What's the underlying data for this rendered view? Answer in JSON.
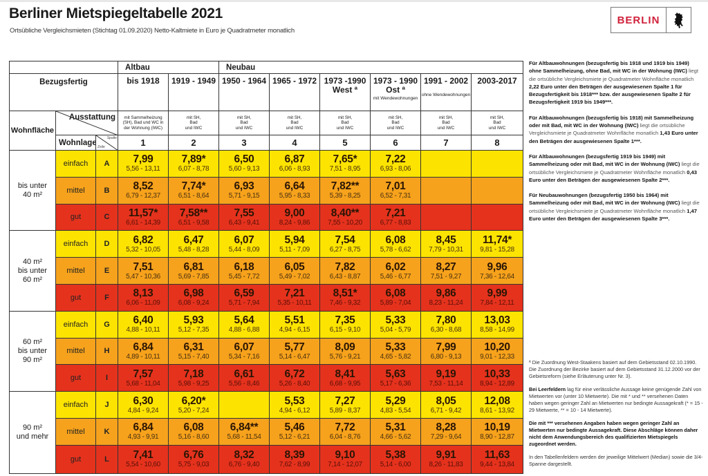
{
  "title": "Berliner Mietspiegeltabelle 2021",
  "subtitle": "Ortsübliche Vergleichsmieten (Stichtag 01.09.2020) Netto-Kaltmiete in Euro je Quadratmeter monatlich",
  "logo": {
    "text": "BERLIN",
    "icon": "berlin-bear-icon",
    "color": "#d0203a"
  },
  "colors": {
    "einfach": "#fde400",
    "mittel": "#f6a21c",
    "gut": "#e5321d"
  },
  "header": {
    "altbau": "Altbau",
    "neubau": "Neubau",
    "bezugsfertig": "Bezugsfertig",
    "wohnflaeche": "Wohnfläche",
    "ausstattung": "Ausstattung",
    "wohnlage": "Wohnlage",
    "spalte": "Spalte",
    "zeile": "Zeile",
    "columns": [
      {
        "year": "bis 1918",
        "sub": "",
        "equip": [
          "mit Sammelheizung",
          "(SH), Bad und WC in",
          "der Wohnung (IWC)"
        ],
        "num": "1"
      },
      {
        "year": "1919 - 1949",
        "sub": "",
        "equip": [
          "mit SH,",
          "Bad",
          "und IWC"
        ],
        "num": "2"
      },
      {
        "year": "1950 - 1964",
        "sub": "",
        "equip": [
          "mit SH,",
          "Bad",
          "und IWC"
        ],
        "num": "3"
      },
      {
        "year": "1965 - 1972",
        "sub": "",
        "equip": [
          "mit SH,",
          "Bad",
          "und IWC"
        ],
        "num": "4"
      },
      {
        "year": "1973 -1990",
        "year2": "West ª",
        "sub": "",
        "equip": [
          "mit SH,",
          "Bad",
          "und IWC"
        ],
        "num": "5"
      },
      {
        "year": "1973 - 1990",
        "year2": "Ost ª",
        "sub": "mit Wendewohnungen",
        "equip": [
          "mit SH,",
          "Bad",
          "und IWC"
        ],
        "num": "6"
      },
      {
        "year": "1991 - 2002",
        "sub": "ohne Wendewohnungen",
        "equip": [
          "mit SH,",
          "Bad",
          "und IWC"
        ],
        "num": "7"
      },
      {
        "year": "2003-2017",
        "sub": "",
        "equip": [
          "mit SH,",
          "Bad",
          "und IWC"
        ],
        "num": "8"
      }
    ]
  },
  "groups": [
    {
      "label": [
        "bis unter",
        "40 m²"
      ],
      "rows": [
        {
          "lage": "einfach",
          "zeile": "A",
          "cells": [
            [
              "7,99",
              "5,56 - 13,11"
            ],
            [
              "7,89*",
              "6,07 - 8,78"
            ],
            [
              "6,50",
              "5,60 - 9,13"
            ],
            [
              "6,87",
              "6,06 - 8,93"
            ],
            [
              "7,65*",
              "7,51 - 8,95"
            ],
            [
              "7,22",
              "6,93 - 8,06"
            ],
            null,
            null
          ]
        },
        {
          "lage": "mittel",
          "zeile": "B",
          "cells": [
            [
              "8,52",
              "6,79 - 12,37"
            ],
            [
              "7,74*",
              "6,51 - 8,64"
            ],
            [
              "6,93",
              "5,71 - 9,15"
            ],
            [
              "6,64",
              "5,95 - 8,33"
            ],
            [
              "7,82**",
              "5,39 - 8,25"
            ],
            [
              "7,01",
              "6,52 - 7,31"
            ],
            null,
            null
          ]
        },
        {
          "lage": "gut",
          "zeile": "C",
          "cells": [
            [
              "11,57*",
              "6,61 - 14,39"
            ],
            [
              "7,58**",
              "6,51 - 9,58"
            ],
            [
              "7,55",
              "6,43 - 9,41"
            ],
            [
              "9,00",
              "8,24 - 9,86"
            ],
            [
              "8,40**",
              "7,55 - 10,20"
            ],
            [
              "7,21",
              "6,77 - 8,83"
            ],
            null,
            null
          ]
        }
      ]
    },
    {
      "label": [
        "40 m²",
        "bis unter",
        "60 m²"
      ],
      "rows": [
        {
          "lage": "einfach",
          "zeile": "D",
          "cells": [
            [
              "6,82",
              "5,32 - 10,05"
            ],
            [
              "6,47",
              "5,48 - 8,28"
            ],
            [
              "6,07",
              "5,44 - 8,09"
            ],
            [
              "5,94",
              "5,11 - 7,09"
            ],
            [
              "7,54",
              "6,27 - 8,75"
            ],
            [
              "6,08",
              "5,78 - 6,62"
            ],
            [
              "8,45",
              "7,79 - 10,31"
            ],
            [
              "11,74*",
              "9,81 - 15,28"
            ]
          ]
        },
        {
          "lage": "mittel",
          "zeile": "E",
          "cells": [
            [
              "7,51",
              "5,47 - 10,36"
            ],
            [
              "6,81",
              "5,69 - 7,85"
            ],
            [
              "6,18",
              "5,45 - 7,72"
            ],
            [
              "6,05",
              "5,49 - 7,02"
            ],
            [
              "7,82",
              "6,43 - 8,87"
            ],
            [
              "6,02",
              "5,46 - 6,77"
            ],
            [
              "8,27",
              "7,51 - 9,27"
            ],
            [
              "9,96",
              "7,36 - 12,64"
            ]
          ]
        },
        {
          "lage": "gut",
          "zeile": "F",
          "cells": [
            [
              "8,13",
              "6,06 - 11,09"
            ],
            [
              "6,98",
              "6,08 - 9,24"
            ],
            [
              "6,59",
              "5,71 - 7,94"
            ],
            [
              "7,21",
              "5,35 - 10,11"
            ],
            [
              "8,51*",
              "7,46 - 9,32"
            ],
            [
              "6,08",
              "5,89 - 7,04"
            ],
            [
              "9,86",
              "8,23 - 11,24"
            ],
            [
              "9,99",
              "7,84 - 12,11"
            ]
          ]
        }
      ]
    },
    {
      "label": [
        "60 m²",
        "bis unter",
        "90 m²"
      ],
      "rows": [
        {
          "lage": "einfach",
          "zeile": "G",
          "cells": [
            [
              "6,40",
              "4,88 - 10,11"
            ],
            [
              "5,93",
              "5,12 - 7,35"
            ],
            [
              "5,64",
              "4,88 - 6,88"
            ],
            [
              "5,51",
              "4,94 - 6,15"
            ],
            [
              "7,35",
              "6,15 - 9,10"
            ],
            [
              "5,33",
              "5,04 - 5,79"
            ],
            [
              "7,80",
              "6,30 - 8,68"
            ],
            [
              "13,03",
              "8,58 - 14,99"
            ]
          ]
        },
        {
          "lage": "mittel",
          "zeile": "H",
          "cells": [
            [
              "6,84",
              "4,89 - 10,11"
            ],
            [
              "6,31",
              "5,15 - 7,40"
            ],
            [
              "6,07",
              "5,34 - 7,16"
            ],
            [
              "5,77",
              "5,14 - 6,47"
            ],
            [
              "8,09",
              "5,76 - 9,21"
            ],
            [
              "5,33",
              "4,65 - 5,82"
            ],
            [
              "7,99",
              "6,80 - 9,13"
            ],
            [
              "10,20",
              "9,01 - 12,33"
            ]
          ]
        },
        {
          "lage": "gut",
          "zeile": "I",
          "cells": [
            [
              "7,57",
              "5,68 - 11,04"
            ],
            [
              "7,18",
              "5,98 - 9,25"
            ],
            [
              "6,61",
              "5,56 - 8,46"
            ],
            [
              "6,72",
              "5,26 - 8,40"
            ],
            [
              "8,41",
              "6,68 - 9,95"
            ],
            [
              "5,63",
              "5,17 - 6,36"
            ],
            [
              "9,19",
              "7,53 - 11,14"
            ],
            [
              "10,33",
              "8,94 - 12,89"
            ]
          ]
        }
      ]
    },
    {
      "label": [
        "90 m²",
        "und mehr"
      ],
      "rows": [
        {
          "lage": "einfach",
          "zeile": "J",
          "cells": [
            [
              "6,30",
              "4,84 - 9,24"
            ],
            [
              "6,20*",
              "5,20 - 7,24"
            ],
            null,
            [
              "5,53",
              "4,94 - 6,12"
            ],
            [
              "7,27",
              "5,89 - 8,37"
            ],
            [
              "5,29",
              "4,83 - 5,54"
            ],
            [
              "8,05",
              "6,71 - 9,42"
            ],
            [
              "12,08",
              "8,61 - 13,92"
            ]
          ]
        },
        {
          "lage": "mittel",
          "zeile": "K",
          "cells": [
            [
              "6,84",
              "4,93 - 9,91"
            ],
            [
              "6,08",
              "5,16 - 8,60"
            ],
            [
              "6,84**",
              "5,68 - 11,54"
            ],
            [
              "5,46",
              "5,12 - 6,21"
            ],
            [
              "7,72",
              "6,04 - 8,76"
            ],
            [
              "5,31",
              "4,66 - 5,62"
            ],
            [
              "8,28",
              "7,29 - 9,64"
            ],
            [
              "10,19",
              "8,90 - 12,87"
            ]
          ]
        },
        {
          "lage": "gut",
          "zeile": "L",
          "cells": [
            [
              "7,41",
              "5,54 - 10,60"
            ],
            [
              "6,76",
              "5,75 - 9,03"
            ],
            [
              "8,32",
              "6,76 - 9,40"
            ],
            [
              "8,39",
              "7,62 - 8,99"
            ],
            [
              "9,10",
              "7,14 - 12,07"
            ],
            [
              "5,38",
              "5,14 - 6,00"
            ],
            [
              "9,91",
              "8,26 - 11,83"
            ],
            [
              "11,63",
              "9,44 - 13,84"
            ]
          ]
        }
      ]
    }
  ],
  "notes": [
    [
      {
        "t": "Für Altbauwohnungen (bezugsfertig bis 1918 und 1919 bis 1949) ohne Sammelheizung, ohne Bad, mit WC in der Wohnung (IWC)",
        "b": true
      },
      {
        "t": " liegt die ortsübliche Vergleichsmiete je Quadratmeter Wohnfläche monatlich ",
        "b": false
      },
      {
        "t": "2,22 Euro unter den Beträgen der ausgewiesenen Spalte 1 für Bezugsfertigkeit bis 1918*** bzw. der ausgewiesenen Spalte 2 für Bezugsfertigkeit 1919 bis 1949***.",
        "b": true
      }
    ],
    [
      {
        "t": "Für Altbauwohnungen (bezugsfertig bis 1918) mit Sammelheizung oder mit Bad, mit WC in der Wohnung (IWC)",
        "b": true
      },
      {
        "t": " liegt die ortsübliche Vergleichsmiete je Quadratmeter Wohnfläche monatlich ",
        "b": false
      },
      {
        "t": "1,43 Euro unter den Beträgen der ausgewiesenen Spalte 1***.",
        "b": true
      }
    ],
    [
      {
        "t": "Für Altbauwohnungen (bezugsfertig 1919 bis 1949) mit Sammelheizung oder mit Bad, mit WC in der Wohnung (IWC)",
        "b": true
      },
      {
        "t": " liegt die ortsübliche Vergleichsmiete je Quadratmeter Wohnfläche monatlich ",
        "b": false
      },
      {
        "t": "0,43 Euro unter den Beträgen der ausgewiesenen Spalte 2***.",
        "b": true
      }
    ],
    [
      {
        "t": "Für Neubauwohnungen (bezugsfertig 1950 bis 1964) mit Sammelheizung oder mit Bad, mit WC in der Wohnung (IWC)",
        "b": true
      },
      {
        "t": " liegt die ortsübliche Vergleichsmiete je Quadratmeter Wohnfläche monatlich ",
        "b": false
      },
      {
        "t": "1,47 Euro unter den Beträgen der ausgewiesenen Spalte 3***.",
        "b": true
      }
    ]
  ],
  "footnotes": [
    [
      {
        "t": "ª Die Zuordnung West-Staakens basiert auf dem Gebietsstand 02.10.1990. Die Zuordnung der Bezirke basiert auf dem Gebietsstand 31.12.2000 vor der Gebietsreform (siehe Erläuterung unter Nr. 3).",
        "b": false
      }
    ],
    [
      {
        "t": "Bei Leerfeldern",
        "b": true
      },
      {
        "t": " lag für eine verlässliche Aussage keine genügende Zahl von Mietwerten vor (unter 10 Mietwerte). Die mit * und ** versehenen Daten haben wegen geringer Zahl an Mietwerten nur bedingte Aussagekraft (* = 15 - 29 Mietwerte, ** = 10 - 14 Mietwerte).",
        "b": false
      }
    ],
    [
      {
        "t": "Die mit *** versehenen Angaben haben wegen geringer Zahl an Mietwerten nur bedingte Aussagekraft. Diese Abschläge können daher nicht dem Anwendungsbereich des qualifizierten Mietspiegels zugeordnet werden.",
        "b": true
      }
    ],
    [
      {
        "t": "In den Tabellenfeldern werden der jeweilige Mittelwert (Median) sowie die 3/4-Spanne dargestellt.",
        "b": false
      }
    ]
  ]
}
